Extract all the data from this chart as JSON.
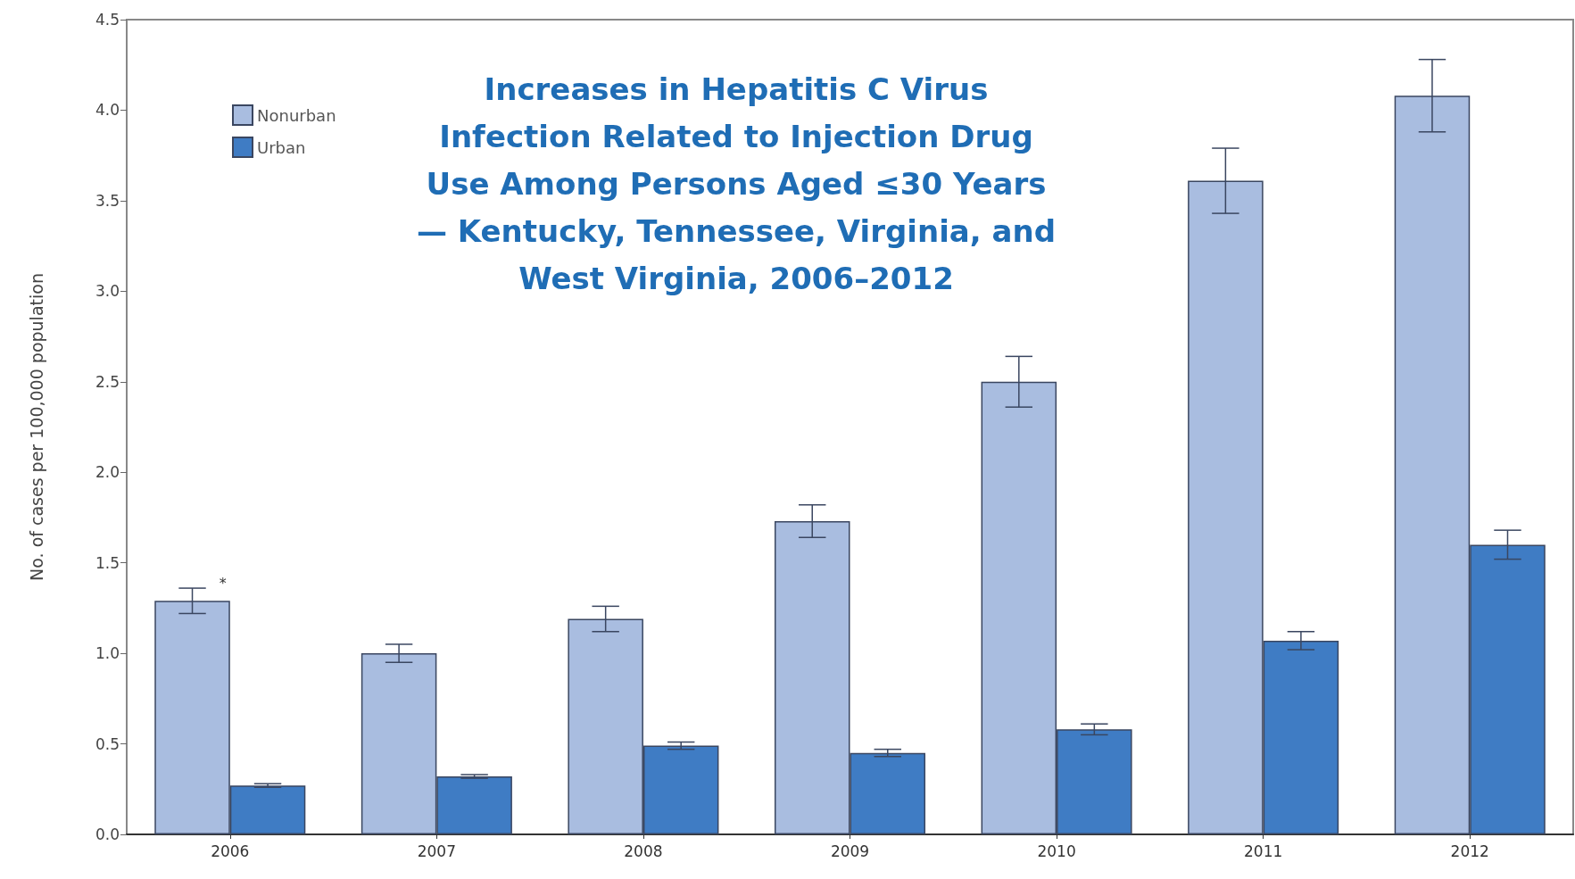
{
  "chart_data": {
    "type": "bar",
    "title": "Increases in Hepatitis C Virus\nInfection Related to Injection Drug\nUse Among Persons Aged ≤30 Years\n— Kentucky, Tennessee, Virginia, and\nWest Virginia, 2006–2012",
    "ylabel": "No. of cases per 100,000 population",
    "categories": [
      "2006",
      "2007",
      "2008",
      "2009",
      "2010",
      "2011",
      "2012"
    ],
    "series": [
      {
        "name": "Nonurban",
        "color": "#a9bde0",
        "values": [
          1.29,
          1.0,
          1.19,
          1.73,
          2.5,
          3.61,
          4.08
        ],
        "errors": [
          0.07,
          0.05,
          0.07,
          0.09,
          0.14,
          0.18,
          0.2
        ]
      },
      {
        "name": "Urban",
        "color": "#3f7cc4",
        "values": [
          0.27,
          0.32,
          0.49,
          0.45,
          0.58,
          1.07,
          1.6
        ],
        "errors": [
          0.01,
          0.01,
          0.02,
          0.02,
          0.03,
          0.05,
          0.08
        ]
      }
    ],
    "annotations": [
      "*"
    ],
    "ylim": [
      0,
      4.5
    ],
    "yticks": [
      {
        "value": 0,
        "label": "0.0"
      },
      {
        "value": 0.5,
        "label": "0.5"
      },
      {
        "value": 1,
        "label": "1.0"
      },
      {
        "value": 1.5,
        "label": "1.5"
      },
      {
        "value": 2,
        "label": "2.0"
      },
      {
        "value": 2.5,
        "label": "2.5"
      },
      {
        "value": 3,
        "label": "3.0"
      },
      {
        "value": 3.5,
        "label": "3.5"
      },
      {
        "value": 4,
        "label": "4.0"
      },
      {
        "value": 4.5,
        "label": "4.5"
      }
    ],
    "grid": false,
    "legend": "top left"
  }
}
